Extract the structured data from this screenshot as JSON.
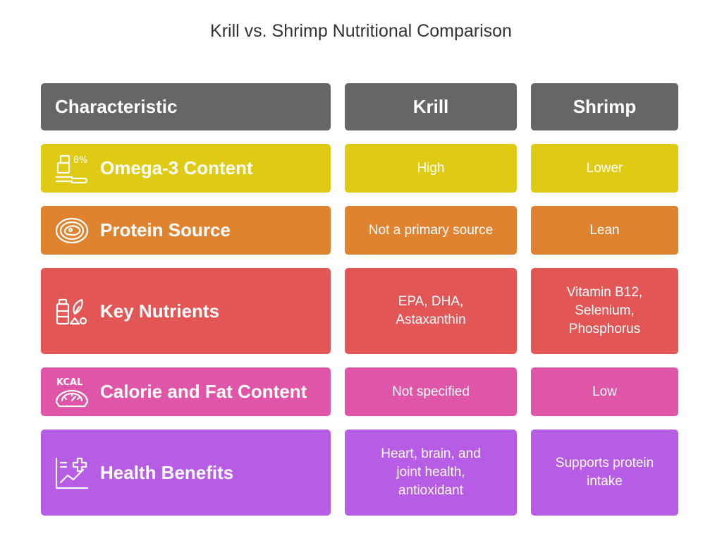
{
  "title": "Krill vs. Shrimp Nutritional Comparison",
  "header": {
    "characteristic": "Characteristic",
    "krill": "Krill",
    "shrimp": "Shrimp"
  },
  "rows": [
    {
      "label": "Omega-3 Content",
      "icon": "supplement-scoop-icon",
      "color": "#dfcb14",
      "krill": "High",
      "shrimp": "Lower"
    },
    {
      "label": "Protein Source",
      "icon": "meat-plate-icon",
      "color": "#e08331",
      "krill": "Not a primary source",
      "shrimp": "Lean"
    },
    {
      "label": "Key Nutrients",
      "icon": "nutrients-bottle-icon",
      "color": "#e35656",
      "krill": "EPA, DHA, Astaxanthin",
      "shrimp": "Vitamin B12, Selenium, Phosphorus"
    },
    {
      "label": "Calorie and Fat Content",
      "icon": "kcal-scale-icon",
      "color": "#df55a7",
      "krill": "Not specified",
      "shrimp": "Low"
    },
    {
      "label": "Health Benefits",
      "icon": "health-chart-icon",
      "color": "#b65ce5",
      "krill": "Heart, brain, and joint health, antioxidant",
      "shrimp": "Supports protein intake"
    }
  ],
  "icon_text": {
    "kcal": "KCAL",
    "theta_percent": "θ%"
  },
  "colors": {
    "header": "#666666"
  }
}
